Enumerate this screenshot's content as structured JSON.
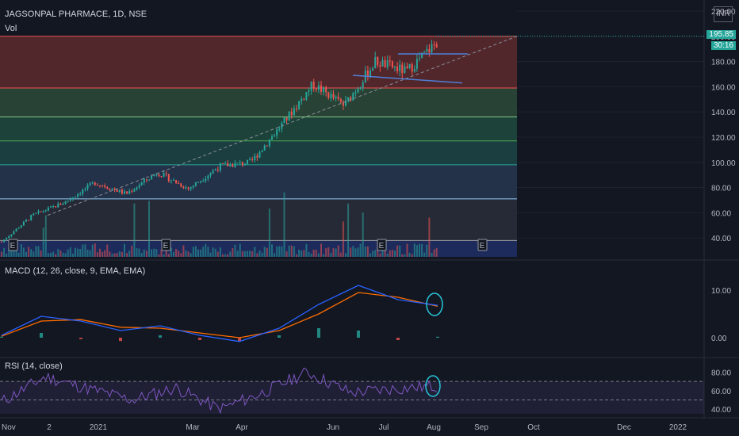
{
  "header": {
    "symbol_line": "JAGSONPAL PHARMACE, 1D, NSE",
    "vol_label": "Vol",
    "macd_label": "MACD (12, 26, close, 9, EMA, EMA)",
    "rsi_label": "RSI (14, close)",
    "currency": "INR"
  },
  "price_tag": {
    "value": "195.85",
    "countdown": "30:16",
    "color": "#26a69a"
  },
  "earnings_marker": "E",
  "colors": {
    "background": "#131722",
    "up": "#26a69a",
    "down": "#ef5350",
    "macd_line": "#2962ff",
    "signal_line": "#ff6d00",
    "rsi_line": "#7e57c2",
    "annotation_circle": "#26c6da",
    "trend_dashed": "#8a8f99"
  },
  "chart_data": [
    {
      "type": "candlestick",
      "title": "JAGSONPAL PHARMACE, 1D, NSE",
      "x_ticks": [
        "Nov",
        "2",
        "2021",
        "Mar",
        "Apr",
        "Jun",
        "Jul",
        "Aug",
        "Sep",
        "Oct",
        "Dec",
        "2022"
      ],
      "y_ticks": [
        40,
        60,
        80,
        100,
        120,
        140,
        160,
        180,
        200,
        220
      ],
      "ylim": [
        25,
        225
      ],
      "price_path": [
        {
          "date": "Nov",
          "close": 37
        },
        {
          "date": "Dec",
          "close": 58
        },
        {
          "date": "Dec mid",
          "close": 68
        },
        {
          "date": "2021",
          "close": 84
        },
        {
          "date": "Feb",
          "close": 75
        },
        {
          "date": "Mar",
          "close": 92
        },
        {
          "date": "Apr",
          "close": 79
        },
        {
          "date": "May",
          "close": 97
        },
        {
          "date": "May end",
          "close": 100
        },
        {
          "date": "Jun",
          "close": 130
        },
        {
          "date": "Jun mid",
          "close": 162
        },
        {
          "date": "Jul",
          "close": 145
        },
        {
          "date": "Jul mid",
          "close": 180
        },
        {
          "date": "Jul end",
          "close": 172
        },
        {
          "date": "Aug",
          "close": 195.85
        }
      ],
      "fib_levels": [
        200,
        159,
        136,
        117,
        98,
        71,
        38
      ],
      "fib_zone_colors": [
        "#5d2a2e",
        "#2e4a3a",
        "#1f4a3e",
        "#1d4545",
        "#27374f",
        "#2a2e39",
        "#1f2f66"
      ],
      "earnings_dates": [
        "Nov",
        "Mar",
        "Jul",
        "Sep"
      ],
      "grid": true,
      "legend": "none"
    },
    {
      "type": "line",
      "title": "MACD (12, 26, close, 9, EMA, EMA)",
      "y_ticks": [
        0.0,
        10.0
      ],
      "ylim": [
        -4,
        16
      ],
      "series": [
        {
          "name": "MACD",
          "x": [
            "Nov",
            "Dec",
            "2021",
            "Feb",
            "Mar",
            "Apr",
            "May",
            "Jun",
            "Jun mid",
            "Jul",
            "Jul end",
            "Aug"
          ],
          "values": [
            0.5,
            4.5,
            3.5,
            1.5,
            2.5,
            0.5,
            -0.8,
            2,
            7,
            11,
            8,
            6.8
          ]
        },
        {
          "name": "Signal",
          "x": [
            "Nov",
            "Dec",
            "2021",
            "Feb",
            "Mar",
            "Apr",
            "May",
            "Jun",
            "Jun mid",
            "Jul",
            "Jul end",
            "Aug"
          ],
          "values": [
            0.3,
            3.5,
            3.8,
            2.2,
            2.0,
            1.0,
            0.0,
            1.5,
            5.0,
            9.5,
            8.5,
            6.6
          ]
        }
      ]
    },
    {
      "type": "line",
      "title": "RSI (14, close)",
      "y_ticks": [
        40.0,
        60.0,
        80.0
      ],
      "ylim": [
        35,
        95
      ],
      "reference_levels": [
        70,
        50,
        30
      ],
      "series": [
        {
          "name": "RSI",
          "x": [
            "Nov",
            "Dec",
            "2021",
            "Feb",
            "Mar",
            "Apr",
            "May",
            "Jun",
            "Jul",
            "Jul end",
            "Aug"
          ],
          "values": [
            48,
            75,
            62,
            50,
            63,
            40,
            58,
            80,
            58,
            62,
            65
          ]
        }
      ]
    }
  ]
}
